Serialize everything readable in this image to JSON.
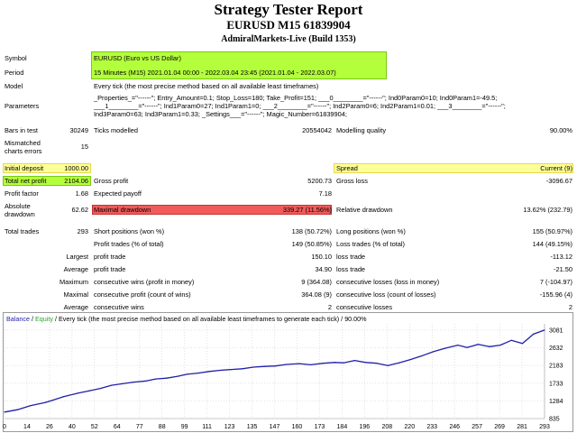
{
  "report": {
    "title": "Strategy Tester Report",
    "symbol_line": "EURUSD M15 61839904",
    "broker_line": "AdmiralMarkets-Live (Build 1353)"
  },
  "info": {
    "symbol_label": "Symbol",
    "symbol_value": "EURUSD (Euro vs US Dollar)",
    "period_label": "Period",
    "period_value": "15 Minutes (M15)  2021.01.04 00:00 - 2022.03.04 23:45  (2021.01.04 - 2022.03.07)",
    "model_label": "Model",
    "model_value": "Every tick (the most precise method based on all available least timeframes)",
    "parameters_label": "Parameters",
    "parameters_lines": [
      "_Properties_=\"------\"; Entry_Amount=0.1; Stop_Loss=180; Take_Profit=151; ___0________=\"------\"; Ind0Param0=10; Ind0Param1=-49.5;",
      "___1________=\"------\"; Ind1Param0=27; Ind1Param1=0; ___2________=\"------\"; Ind2Param0=6; Ind2Param1=0.01; ___3________=\"------\";",
      "Ind3Param0=63; Ind3Param1=0.33; _Settings___=\"------\"; Magic_Number=61839904;"
    ],
    "bars_label": "Bars in test",
    "bars_value": "30249",
    "ticks_label": "Ticks modelled",
    "ticks_value": "20554042",
    "quality_label": "Modelling quality",
    "quality_value": "90.00%",
    "mismatch_label_1": "Mismatched",
    "mismatch_label_2": "charts errors",
    "mismatch_value": "15"
  },
  "results": {
    "initial_deposit_label": "Initial deposit",
    "initial_deposit_value": "1000.00",
    "spread_label": "Spread",
    "spread_value": "Current (9)",
    "total_net_profit_label": "Total net profit",
    "total_net_profit_value": "2104.06",
    "gross_profit_label": "Gross profit",
    "gross_profit_value": "5200.73",
    "gross_loss_label": "Gross loss",
    "gross_loss_value": "-3096.67",
    "profit_factor_label": "Profit factor",
    "profit_factor_value": "1.68",
    "expected_payoff_label": "Expected payoff",
    "expected_payoff_value": "7.18",
    "abs_dd_label_1": "Absolute",
    "abs_dd_label_2": "drawdown",
    "abs_dd_value": "62.62",
    "max_dd_label": "Maximal drawdown",
    "max_dd_value": "339.27 (11.56%)",
    "rel_dd_label": "Relative drawdown",
    "rel_dd_value": "13.62% (232.79)",
    "total_trades_label": "Total trades",
    "total_trades_value": "293",
    "short_label": "Short positions (won %)",
    "short_value": "138 (50.72%)",
    "long_label": "Long positions (won %)",
    "long_value": "155 (50.97%)",
    "profit_trades_label": "Profit trades (% of total)",
    "profit_trades_value": "149 (50.85%)",
    "loss_trades_label": "Loss trades (% of total)",
    "loss_trades_value": "144 (49.15%)",
    "largest_label": "Largest",
    "largest_profit_label": "profit trade",
    "largest_profit_value": "150.10",
    "largest_loss_label": "loss trade",
    "largest_loss_value": "-113.12",
    "average_label": "Average",
    "average_profit_label": "profit trade",
    "average_profit_value": "34.90",
    "average_loss_label": "loss trade",
    "average_loss_value": "-21.50",
    "maximum_label": "Maximum",
    "max_cons_wins_label": "consecutive wins (profit in money)",
    "max_cons_wins_value": "9 (364.08)",
    "max_cons_losses_label": "consecutive losses (loss in money)",
    "max_cons_losses_value": "7 (-104.97)",
    "maximal_label": "Maximal",
    "maximal_cons_profit_label": "consecutive profit (count of wins)",
    "maximal_cons_profit_value": "364.08 (9)",
    "maximal_cons_loss_label": "consecutive loss (count of losses)",
    "maximal_cons_loss_value": "-155.96 (4)",
    "average2_label": "Average",
    "avg_cons_wins_label": "consecutive wins",
    "avg_cons_wins_value": "2",
    "avg_cons_losses_label": "consecutive losses",
    "avg_cons_losses_value": "2"
  },
  "colors": {
    "highlight_yellow": "#ffff99",
    "highlight_green": "#b4ff3c",
    "highlight_red": "#f05a5a",
    "balance_line": "#1f1fa8",
    "equity_label": "#27a827",
    "grid": "#c8c8c8"
  },
  "chart_data": {
    "type": "line",
    "legend": {
      "balance": "Balance",
      "sep1": " / ",
      "equity": "Equity",
      "sep2": " / ",
      "description": "Every tick (the most precise method based on all available least timeframes to generate each tick)",
      "sep3": " / ",
      "quality": "90.00%"
    },
    "x_ticks": [
      "0",
      "14",
      "26",
      "40",
      "52",
      "64",
      "77",
      "88",
      "99",
      "111",
      "123",
      "135",
      "147",
      "160",
      "173",
      "184",
      "196",
      "208",
      "220",
      "233",
      "246",
      "257",
      "269",
      "281",
      "293"
    ],
    "y_ticks": [
      "3081",
      "2632",
      "2183",
      "1733",
      "1284",
      "835"
    ],
    "xlim": [
      0,
      293
    ],
    "ylim": [
      835,
      3240
    ],
    "series": [
      {
        "name": "Balance",
        "x": [
          0,
          7,
          14,
          22,
          26,
          32,
          40,
          46,
          52,
          58,
          64,
          70,
          77,
          82,
          88,
          94,
          99,
          105,
          111,
          117,
          123,
          129,
          135,
          141,
          147,
          153,
          160,
          166,
          173,
          179,
          184,
          190,
          196,
          202,
          208,
          214,
          220,
          226,
          233,
          239,
          246,
          251,
          257,
          263,
          269,
          275,
          281,
          287,
          293
        ],
        "y": [
          1000,
          1060,
          1160,
          1240,
          1300,
          1390,
          1480,
          1540,
          1600,
          1680,
          1720,
          1760,
          1790,
          1840,
          1860,
          1910,
          1960,
          1990,
          2030,
          2060,
          2080,
          2100,
          2140,
          2160,
          2170,
          2210,
          2230,
          2200,
          2240,
          2260,
          2250,
          2310,
          2260,
          2240,
          2180,
          2250,
          2330,
          2420,
          2540,
          2620,
          2700,
          2640,
          2720,
          2660,
          2700,
          2820,
          2740,
          2980,
          3081
        ]
      }
    ]
  }
}
